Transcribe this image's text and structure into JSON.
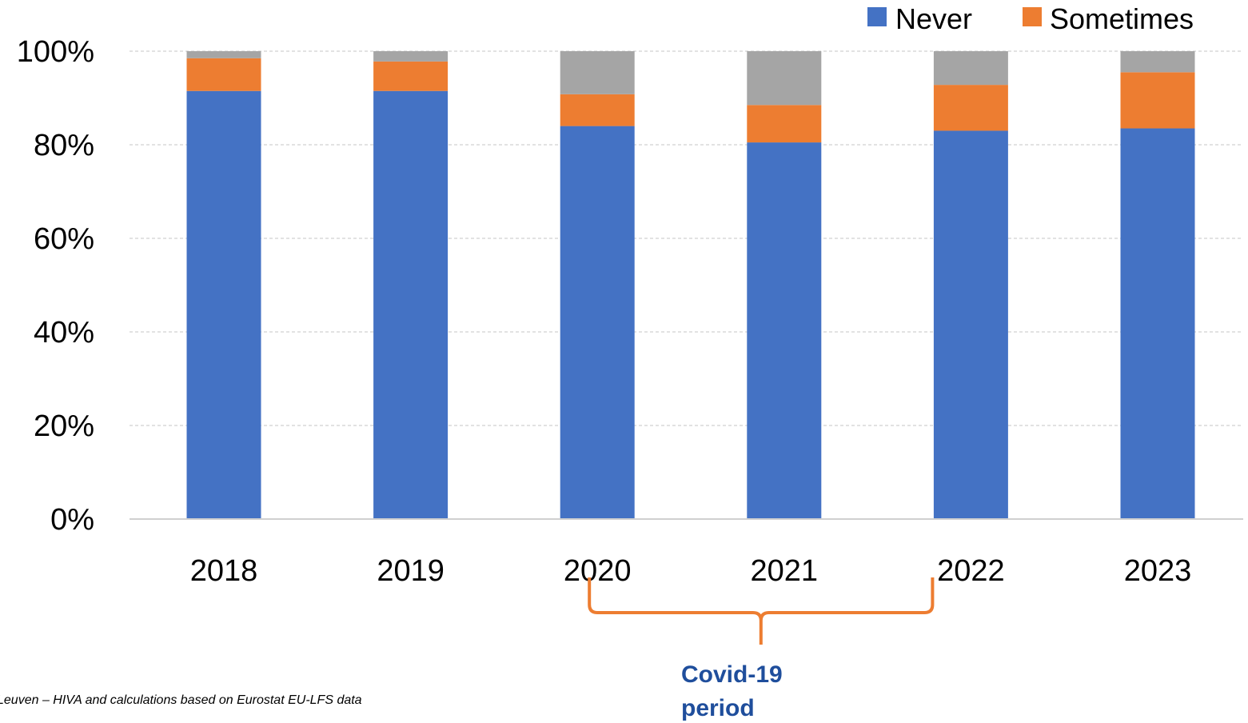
{
  "chart_data": {
    "type": "bar",
    "stacked": true,
    "categories": [
      "2018",
      "2019",
      "2020",
      "2021",
      "2022",
      "2023"
    ],
    "series": [
      {
        "name": "Never",
        "color": "#4472c4",
        "values": [
          91.5,
          91.5,
          84,
          80.5,
          83,
          83.5
        ]
      },
      {
        "name": "Sometimes",
        "color": "#ed7d31",
        "values": [
          7,
          6.3,
          6.8,
          8,
          9.8,
          12
        ]
      },
      {
        "name": "",
        "color": "#a5a5a5",
        "values": [
          1.5,
          2.2,
          9.2,
          11.5,
          7.2,
          4.5
        ]
      }
    ],
    "ylim": [
      0,
      100
    ],
    "yticks": [
      "0%",
      "20%",
      "40%",
      "60%",
      "80%",
      "100%"
    ],
    "grid": true,
    "legend_position": "top-right",
    "annotation": {
      "text_line1": "Covid-19",
      "text_line2": "period",
      "from_category": "2020",
      "to_category": "2022",
      "color": "#ed7d31"
    },
    "source_text": "Leuven – HIVA and calculations based on Eurostat EU-LFS data"
  }
}
